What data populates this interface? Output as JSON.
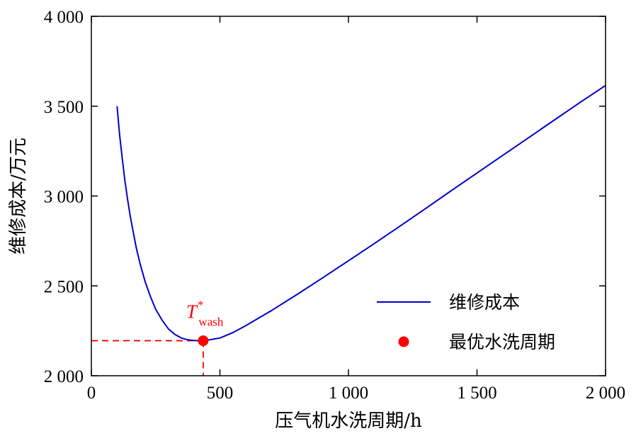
{
  "chart_data": {
    "type": "line",
    "xlabel": "压气机水洗周期/h",
    "ylabel": "维修成本/万元",
    "xlim": [
      0,
      2000
    ],
    "ylim": [
      2000,
      4000
    ],
    "x_ticks": [
      0,
      500,
      1000,
      1500,
      2000
    ],
    "x_tick_labels": [
      "0",
      "500",
      "1 000",
      "1 500",
      "2 000"
    ],
    "y_ticks": [
      2000,
      2500,
      3000,
      3500,
      4000
    ],
    "y_tick_labels": [
      "2 000",
      "2 500",
      "3 000",
      "3 500",
      "4 000"
    ],
    "grid": false,
    "legend_position": "bottom-right",
    "series": [
      {
        "name": "维修成本",
        "color": "#0000cc",
        "x": [
          100,
          110,
          120,
          130,
          140,
          150,
          160,
          175,
          190,
          210,
          230,
          250,
          275,
          300,
          325,
          350,
          375,
          400,
          420,
          440,
          460,
          480,
          500,
          550,
          600,
          700,
          800,
          900,
          1000,
          1100,
          1200,
          1300,
          1400,
          1500,
          1600,
          1700,
          1800,
          1900,
          2000
        ],
        "y": [
          3500,
          3340,
          3210,
          3090,
          2990,
          2900,
          2820,
          2710,
          2620,
          2520,
          2440,
          2370,
          2310,
          2260,
          2230,
          2210,
          2200,
          2196,
          2194,
          2196,
          2200,
          2205,
          2210,
          2240,
          2278,
          2362,
          2452,
          2545,
          2640,
          2735,
          2832,
          2930,
          3030,
          3128,
          3226,
          3324,
          3422,
          3520,
          3615
        ]
      }
    ],
    "optimum": {
      "name": "最优水洗周期",
      "x": 435,
      "y": 2195,
      "color": "#ff0000"
    },
    "annotation": {
      "main": "T",
      "sub": "wash",
      "sup": "*"
    }
  }
}
